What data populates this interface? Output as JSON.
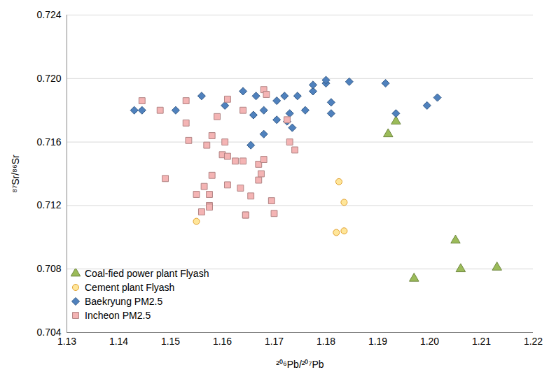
{
  "chart_data": {
    "type": "scatter",
    "x_label": "²⁰⁶Pb/²⁰⁷Pb",
    "y_label": "⁸⁷Sr/⁸⁶Sr",
    "xlim": [
      1.13,
      1.22
    ],
    "xticks": [
      1.13,
      1.14,
      1.15,
      1.16,
      1.17,
      1.18,
      1.19,
      {
        "value": 1.2,
        "label": "1.20"
      },
      1.21,
      1.22
    ],
    "ylim": [
      0.704,
      0.724
    ],
    "yticks": [
      0.704,
      0.708,
      0.712,
      0.716,
      {
        "value": 0.72,
        "label": "0.720"
      },
      0.724
    ],
    "grid": "y",
    "legend": "bottom-left",
    "series": [
      {
        "name": "Coal-fied power plant Flyash",
        "color": "#9bbb59",
        "marker": "triangle",
        "x": [
          1.192,
          1.1935,
          1.205,
          1.206,
          1.197,
          1.213
        ],
        "values": [
          0.7165,
          0.7173,
          0.7098,
          0.708,
          0.7074,
          0.7081
        ]
      },
      {
        "name": "Cement plant Flyash",
        "color": "#ffe699",
        "marker": "circle",
        "x": [
          1.155,
          1.1825,
          1.1835,
          1.182,
          1.1835
        ],
        "values": [
          0.711,
          0.7135,
          0.7122,
          0.7103,
          0.7104
        ]
      },
      {
        "name": "Baekryung PM2.5",
        "color": "#4f81bd",
        "marker": "diamond",
        "x": [
          1.143,
          1.1445,
          1.151,
          1.156,
          1.1605,
          1.164,
          1.1655,
          1.166,
          1.1665,
          1.168,
          1.168,
          1.1705,
          1.1705,
          1.172,
          1.1725,
          1.173,
          1.1735,
          1.1745,
          1.176,
          1.1775,
          1.1775,
          1.18,
          1.18,
          1.181,
          1.181,
          1.1845,
          1.1915,
          1.1935,
          1.1995,
          1.2015
        ],
        "values": [
          0.718,
          0.718,
          0.718,
          0.7189,
          0.7183,
          0.7192,
          0.7158,
          0.7177,
          0.7189,
          0.7165,
          0.718,
          0.7174,
          0.7186,
          0.7189,
          0.7173,
          0.7178,
          0.7169,
          0.7189,
          0.718,
          0.7192,
          0.7196,
          0.7197,
          0.7199,
          0.7185,
          0.7178,
          0.7198,
          0.7197,
          0.7178,
          0.7183,
          0.7188
        ]
      },
      {
        "name": "Incheon PM2.5",
        "color": "#f4b4b4",
        "marker": "square",
        "x": [
          1.1445,
          1.148,
          1.149,
          1.153,
          1.153,
          1.1535,
          1.155,
          1.156,
          1.1565,
          1.157,
          1.1575,
          1.1575,
          1.1575,
          1.158,
          1.158,
          1.159,
          1.16,
          1.1605,
          1.161,
          1.161,
          1.161,
          1.1625,
          1.1635,
          1.164,
          1.164,
          1.1645,
          1.1645,
          1.1655,
          1.167,
          1.167,
          1.1675,
          1.168,
          1.168,
          1.1685,
          1.1695,
          1.17,
          1.1725,
          1.173,
          1.174
        ],
        "values": [
          0.7186,
          0.718,
          0.7137,
          0.7186,
          0.7172,
          0.7161,
          0.7127,
          0.7116,
          0.7132,
          0.7158,
          0.7127,
          0.712,
          0.7119,
          0.7164,
          0.7139,
          0.7176,
          0.7152,
          0.716,
          0.7187,
          0.7151,
          0.7133,
          0.7148,
          0.7131,
          0.7148,
          0.718,
          0.7114,
          0.7114,
          0.7126,
          0.7146,
          0.7136,
          0.714,
          0.7193,
          0.7149,
          0.719,
          0.7123,
          0.7115,
          0.7174,
          0.716,
          0.7155
        ]
      }
    ]
  }
}
